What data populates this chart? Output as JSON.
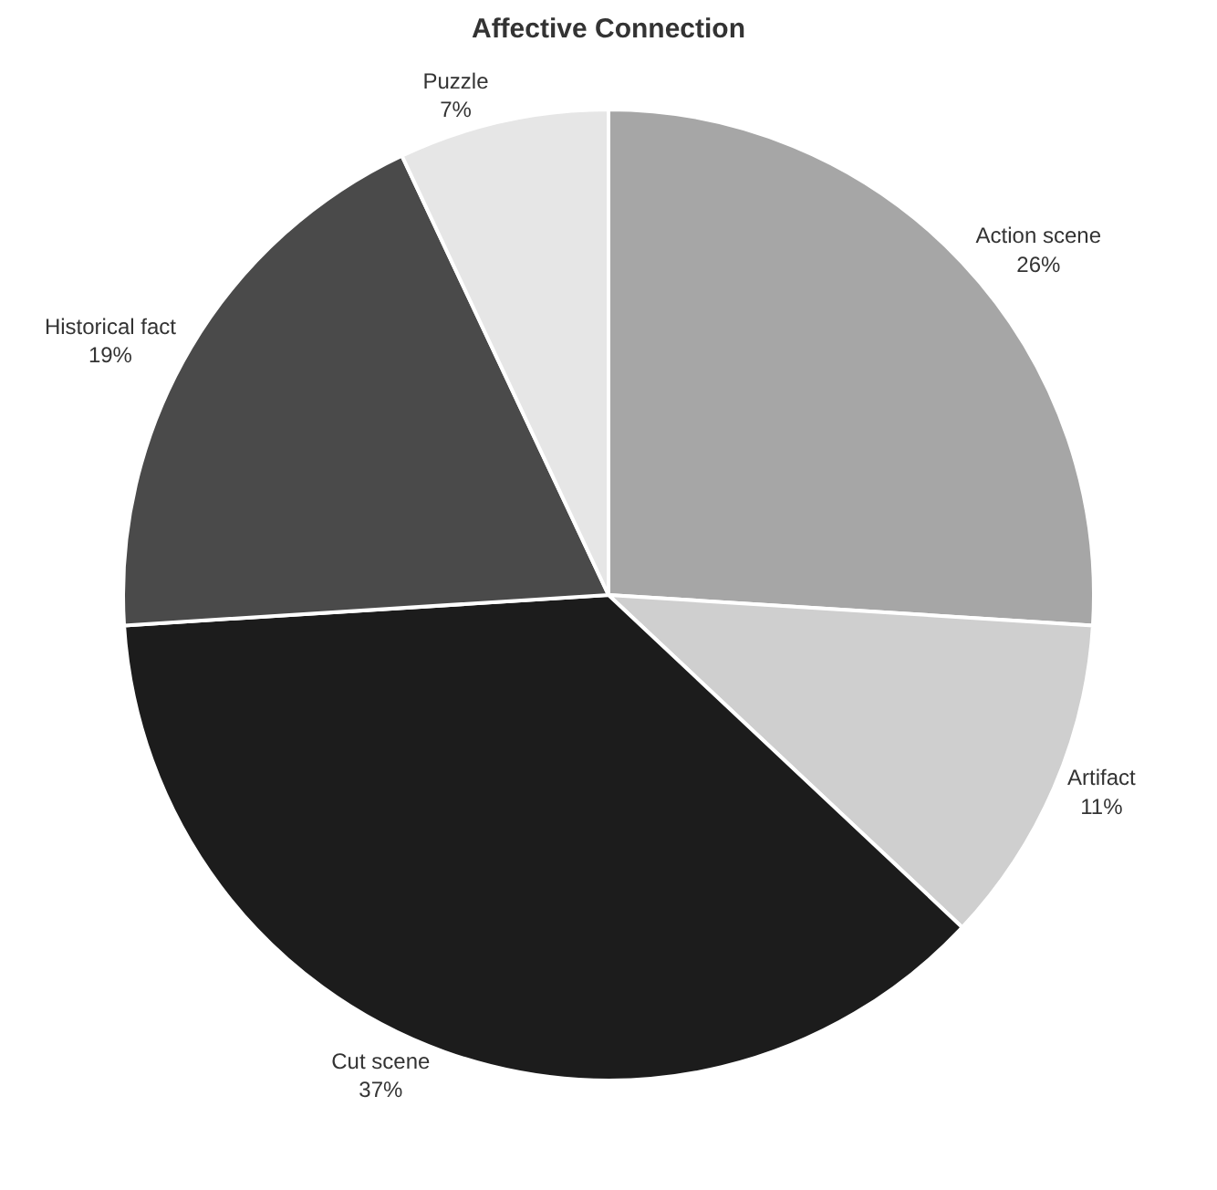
{
  "chart_data": {
    "type": "pie",
    "title": "Affective Connection",
    "categories": [
      "Action scene",
      "Artifact",
      "Cut scene",
      "Historical fact",
      "Puzzle"
    ],
    "values": [
      26,
      11,
      37,
      19,
      7
    ],
    "value_labels": [
      "26%",
      "11%",
      "37%",
      "19%",
      "7%"
    ],
    "colors": [
      "#a6a6a6",
      "#cfcfcf",
      "#1c1c1c",
      "#4a4a4a",
      "#e6e6e6"
    ],
    "legend": false
  }
}
